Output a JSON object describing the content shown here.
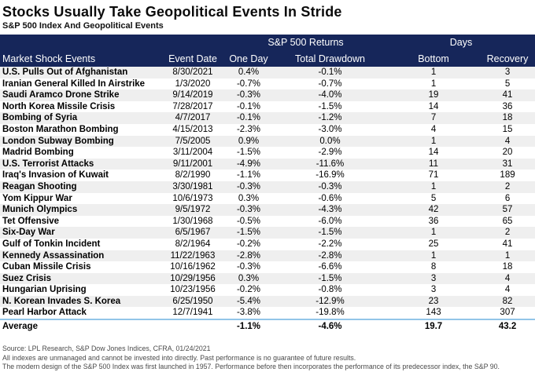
{
  "title": "Stocks Usually Take Geopolitical Events In Stride",
  "subtitle": "S&P 500 Index And Geopolitical Events",
  "colors": {
    "header_bg": "#16265a",
    "stripe": "#efefef",
    "average_separator": "#92c5e8"
  },
  "chart_data": {
    "type": "table",
    "title": "Stocks Usually Take Geopolitical Events In Stride",
    "subtitle": "S&P 500 Index And Geopolitical Events",
    "group_headers": {
      "returns": "S&P 500 Returns",
      "days": "Days"
    },
    "columns": [
      "Market Shock Events",
      "Event Date",
      "One Day",
      "Total Drawdown",
      "Bottom",
      "Recovery"
    ],
    "rows": [
      {
        "event": "U.S. Pulls Out of Afghanistan",
        "date": "8/30/2021",
        "one_day": "0.4%",
        "drawdown": "-0.1%",
        "bottom": "1",
        "recovery": "3"
      },
      {
        "event": "Iranian General Killed In Airstrike",
        "date": "1/3/2020",
        "one_day": "-0.7%",
        "drawdown": "-0.7%",
        "bottom": "1",
        "recovery": "5"
      },
      {
        "event": "Saudi Aramco Drone Strike",
        "date": "9/14/2019",
        "one_day": "-0.3%",
        "drawdown": "-4.0%",
        "bottom": "19",
        "recovery": "41"
      },
      {
        "event": "North Korea Missile Crisis",
        "date": "7/28/2017",
        "one_day": "-0.1%",
        "drawdown": "-1.5%",
        "bottom": "14",
        "recovery": "36"
      },
      {
        "event": "Bombing of Syria",
        "date": "4/7/2017",
        "one_day": "-0.1%",
        "drawdown": "-1.2%",
        "bottom": "7",
        "recovery": "18"
      },
      {
        "event": "Boston Marathon Bombing",
        "date": "4/15/2013",
        "one_day": "-2.3%",
        "drawdown": "-3.0%",
        "bottom": "4",
        "recovery": "15"
      },
      {
        "event": "London Subway Bombing",
        "date": "7/5/2005",
        "one_day": "0.9%",
        "drawdown": "0.0%",
        "bottom": "1",
        "recovery": "4"
      },
      {
        "event": "Madrid Bombing",
        "date": "3/11/2004",
        "one_day": "-1.5%",
        "drawdown": "-2.9%",
        "bottom": "14",
        "recovery": "20"
      },
      {
        "event": "U.S. Terrorist Attacks",
        "date": "9/11/2001",
        "one_day": "-4.9%",
        "drawdown": "-11.6%",
        "bottom": "11",
        "recovery": "31"
      },
      {
        "event": "Iraq's Invasion of Kuwait",
        "date": "8/2/1990",
        "one_day": "-1.1%",
        "drawdown": "-16.9%",
        "bottom": "71",
        "recovery": "189"
      },
      {
        "event": "Reagan Shooting",
        "date": "3/30/1981",
        "one_day": "-0.3%",
        "drawdown": "-0.3%",
        "bottom": "1",
        "recovery": "2"
      },
      {
        "event": "Yom Kippur War",
        "date": "10/6/1973",
        "one_day": "0.3%",
        "drawdown": "-0.6%",
        "bottom": "5",
        "recovery": "6"
      },
      {
        "event": "Munich Olympics",
        "date": "9/5/1972",
        "one_day": "-0.3%",
        "drawdown": "-4.3%",
        "bottom": "42",
        "recovery": "57"
      },
      {
        "event": "Tet Offensive",
        "date": "1/30/1968",
        "one_day": "-0.5%",
        "drawdown": "-6.0%",
        "bottom": "36",
        "recovery": "65"
      },
      {
        "event": "Six-Day War",
        "date": "6/5/1967",
        "one_day": "-1.5%",
        "drawdown": "-1.5%",
        "bottom": "1",
        "recovery": "2"
      },
      {
        "event": "Gulf of Tonkin Incident",
        "date": "8/2/1964",
        "one_day": "-0.2%",
        "drawdown": "-2.2%",
        "bottom": "25",
        "recovery": "41"
      },
      {
        "event": "Kennedy Assassination",
        "date": "11/22/1963",
        "one_day": "-2.8%",
        "drawdown": "-2.8%",
        "bottom": "1",
        "recovery": "1"
      },
      {
        "event": "Cuban Missile Crisis",
        "date": "10/16/1962",
        "one_day": "-0.3%",
        "drawdown": "-6.6%",
        "bottom": "8",
        "recovery": "18"
      },
      {
        "event": "Suez Crisis",
        "date": "10/29/1956",
        "one_day": "0.3%",
        "drawdown": "-1.5%",
        "bottom": "3",
        "recovery": "4"
      },
      {
        "event": "Hungarian Uprising",
        "date": "10/23/1956",
        "one_day": "-0.2%",
        "drawdown": "-0.8%",
        "bottom": "3",
        "recovery": "4"
      },
      {
        "event": "N. Korean Invades S. Korea",
        "date": "6/25/1950",
        "one_day": "-5.4%",
        "drawdown": "-12.9%",
        "bottom": "23",
        "recovery": "82"
      },
      {
        "event": "Pearl Harbor Attack",
        "date": "12/7/1941",
        "one_day": "-3.8%",
        "drawdown": "-19.8%",
        "bottom": "143",
        "recovery": "307"
      }
    ],
    "average": {
      "event": "Average",
      "date": "",
      "one_day": "-1.1%",
      "drawdown": "-4.6%",
      "bottom": "19.7",
      "recovery": "43.2"
    }
  },
  "footer": {
    "source": "Source: LPL Research, S&P Dow Jones Indices, CFRA, 01/24/2021",
    "disclaimer1": "All indexes are unmanaged and cannot be invested into directly.  Past performance is no guarantee of future results.",
    "disclaimer2": "The modern design of the S&P 500 Index was first launched in 1957. Performance before then incorporates the performance of its predecessor index, the S&P 90."
  }
}
